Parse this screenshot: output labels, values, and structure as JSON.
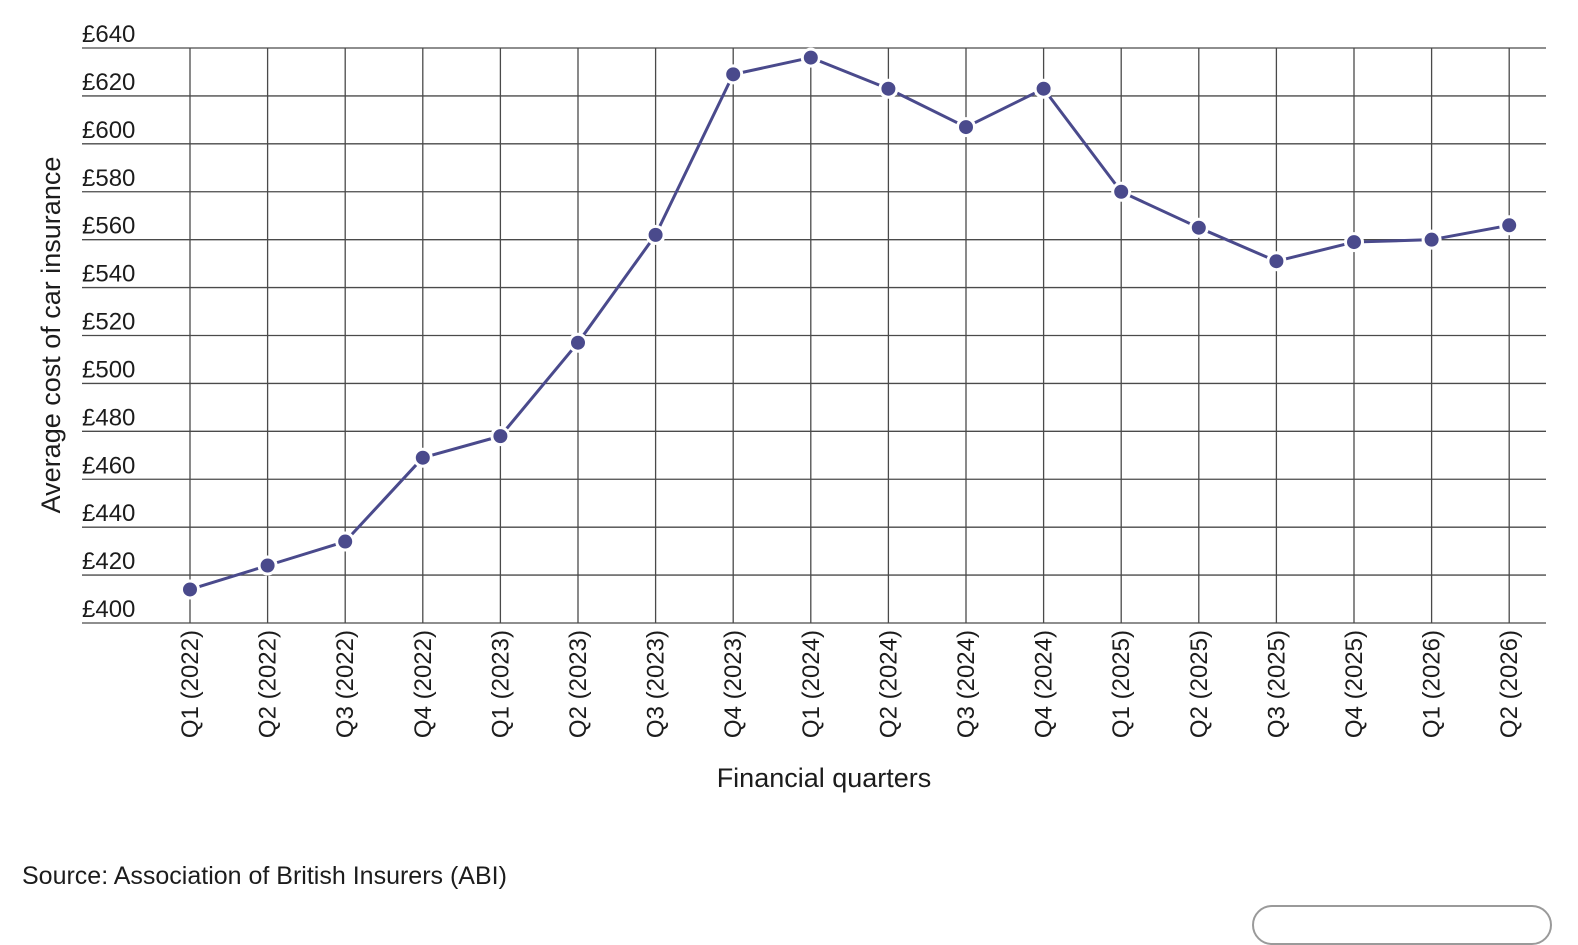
{
  "chart_data": {
    "type": "line",
    "title": "",
    "xlabel": "Financial quarters",
    "ylabel": "Average cost of car insurance",
    "categories": [
      "Q1 (2022)",
      "Q2 (2022)",
      "Q3 (2022)",
      "Q4 (2022)",
      "Q1 (2023)",
      "Q2 (2023)",
      "Q3 (2023)",
      "Q4 (2023)",
      "Q1 (2024)",
      "Q2 (2024)",
      "Q3 (2024)",
      "Q4 (2024)",
      "Q1 (2025)",
      "Q2 (2025)",
      "Q3 (2025)",
      "Q4 (2025)",
      "Q1 (2026)",
      "Q2 (2026)"
    ],
    "series": [
      {
        "values": [
          414,
          424,
          434,
          469,
          478,
          517,
          562,
          629,
          636,
          623,
          607,
          623,
          580,
          565,
          551,
          559,
          560,
          566
        ],
        "color": "#4a4a8c"
      }
    ],
    "y_ticks": [
      400,
      420,
      440,
      460,
      480,
      500,
      520,
      540,
      560,
      580,
      600,
      620,
      640
    ],
    "y_tick_labels": [
      "£400",
      "£420",
      "£440",
      "£460",
      "£480",
      "£500",
      "£520",
      "£540",
      "£560",
      "£580",
      "£600",
      "£620",
      "£640"
    ],
    "ylim": [
      400,
      640
    ],
    "grid": true,
    "legend": "none"
  },
  "source_text": "Source: Association of British Insurers (ABI)"
}
